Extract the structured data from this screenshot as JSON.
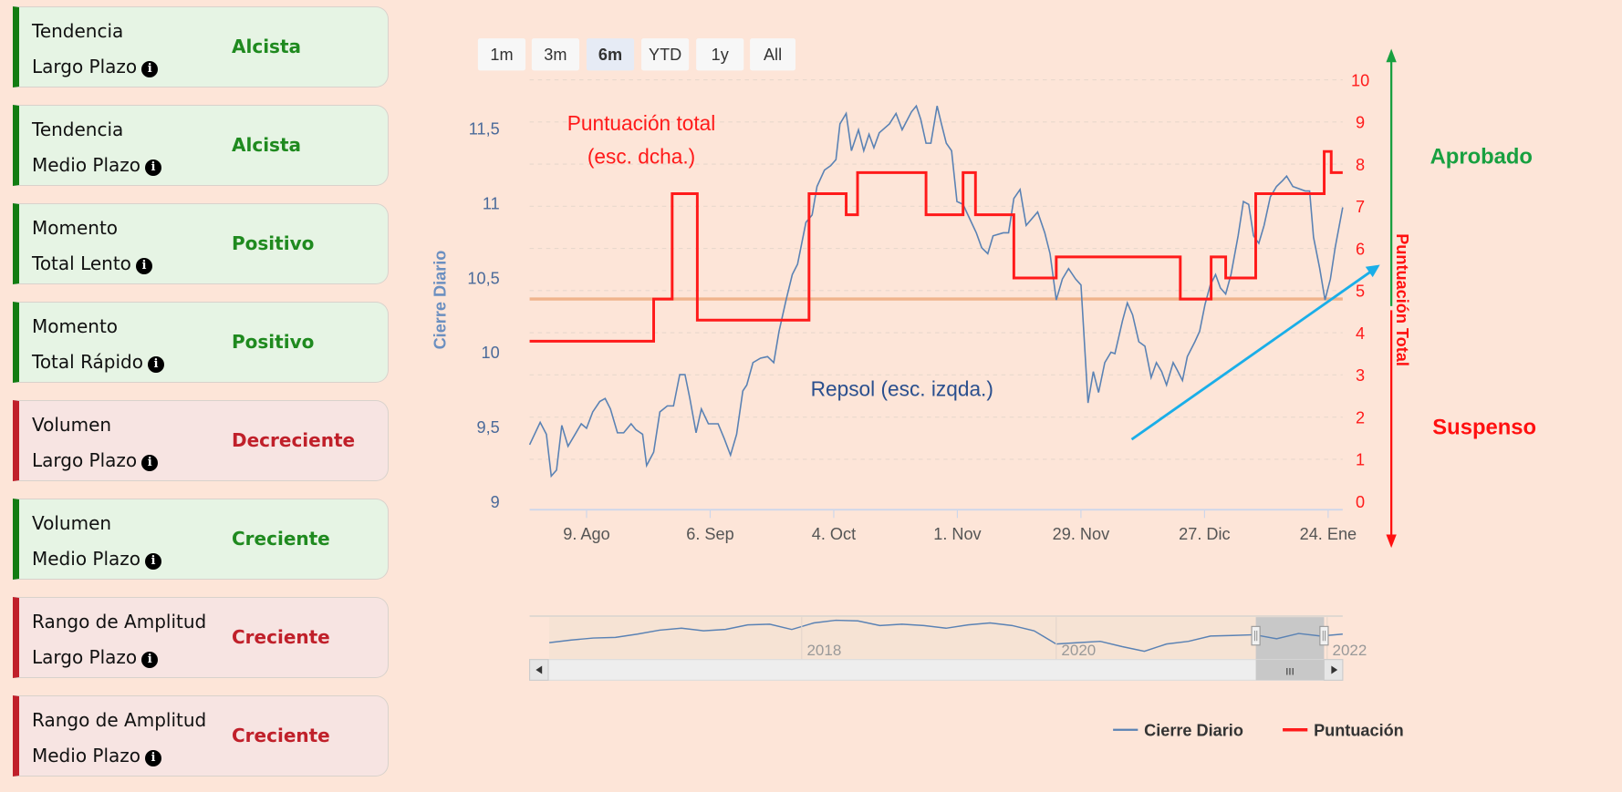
{
  "cards": [
    {
      "line1": "Tendencia",
      "line2": "Largo Plazo",
      "value": "Alcista",
      "status": "pos"
    },
    {
      "line1": "Tendencia",
      "line2": "Medio Plazo",
      "value": "Alcista",
      "status": "pos"
    },
    {
      "line1": "Momento",
      "line2": "Total Lento",
      "value": "Positivo",
      "status": "pos"
    },
    {
      "line1": "Momento",
      "line2": "Total Rápido",
      "value": "Positivo",
      "status": "pos"
    },
    {
      "line1": "Volumen",
      "line2": "Largo Plazo",
      "value": "Decreciente",
      "status": "neg"
    },
    {
      "line1": "Volumen",
      "line2": "Medio Plazo",
      "value": "Creciente",
      "status": "pos"
    },
    {
      "line1": "Rango de Amplitud",
      "line2": "Largo Plazo",
      "value": "Creciente",
      "status": "neg"
    },
    {
      "line1": "Rango de Amplitud",
      "line2": "Medio Plazo",
      "value": "Creciente",
      "status": "neg"
    }
  ],
  "info_icon": "i",
  "range_buttons": [
    {
      "label": "1m",
      "active": false
    },
    {
      "label": "3m",
      "active": false
    },
    {
      "label": "6m",
      "active": true
    },
    {
      "label": "YTD",
      "active": false
    },
    {
      "label": "1y",
      "active": false
    },
    {
      "label": "All",
      "active": false
    }
  ],
  "annotations": {
    "score_title_1": "Puntuación total",
    "score_title_2": "(esc. dcha.)",
    "price_title": "Repsol (esc. izqda.)",
    "approved": "Aprobado",
    "failed": "Suspenso",
    "right_axis_title": "Puntuación Total"
  },
  "colors": {
    "price": "#5a82b4",
    "score": "#ff1a1a",
    "threshold": "#f0b48c",
    "approved": "#18a040",
    "failed": "#ff1010",
    "trend_arrow": "#1aaee8"
  },
  "chart_data": {
    "type": "line",
    "title": "",
    "xlabel": "",
    "ylabel": "Cierre Diario",
    "ylabel_right": "Puntuación Total",
    "x_unit": "days since 9. Ago",
    "xlim": [
      -12.9,
      171.3
    ],
    "ylim": [
      9,
      11.82
    ],
    "ylim_right": [
      0,
      10
    ],
    "y_ticks": [
      "9",
      "9,5",
      "10",
      "10,5",
      "11",
      "11,5"
    ],
    "y_tick_values": [
      9,
      9.5,
      10,
      10.5,
      11,
      11.5
    ],
    "y_right_ticks": [
      "0",
      "1",
      "2",
      "3",
      "4",
      "5",
      "6",
      "7",
      "8",
      "9",
      "10"
    ],
    "x_ticks": [
      {
        "label": "9. Ago",
        "x": 0
      },
      {
        "label": "6. Sep",
        "x": 28
      },
      {
        "label": "4. Oct",
        "x": 56
      },
      {
        "label": "1. Nov",
        "x": 84
      },
      {
        "label": "29. Nov",
        "x": 112
      },
      {
        "label": "27. Dic",
        "x": 140
      },
      {
        "label": "24. Ene",
        "x": 168
      }
    ],
    "grid": true,
    "threshold_score": 4.8,
    "legend": {
      "position": "bottom-right",
      "items": [
        "Cierre Diario",
        "Puntuación"
      ]
    },
    "series": [
      {
        "name": "Cierre Diario",
        "axis": "left",
        "points": [
          [
            -12.9,
            9.38
          ],
          [
            -10.5,
            9.53
          ],
          [
            -9.1,
            9.45
          ],
          [
            -8.0,
            9.17
          ],
          [
            -6.8,
            9.21
          ],
          [
            -5.6,
            9.51
          ],
          [
            -4.2,
            9.37
          ],
          [
            -2.6,
            9.45
          ],
          [
            -1.2,
            9.52
          ],
          [
            0,
            9.49
          ],
          [
            1.4,
            9.6
          ],
          [
            3.0,
            9.67
          ],
          [
            4.2,
            9.69
          ],
          [
            5.4,
            9.62
          ],
          [
            7.0,
            9.46
          ],
          [
            8.4,
            9.46
          ],
          [
            10.1,
            9.52
          ],
          [
            11.2,
            9.48
          ],
          [
            12.7,
            9.45
          ],
          [
            13.6,
            9.24
          ],
          [
            15.2,
            9.33
          ],
          [
            16.6,
            9.6
          ],
          [
            18.3,
            9.64
          ],
          [
            19.7,
            9.64
          ],
          [
            21.1,
            9.85
          ],
          [
            22.3,
            9.85
          ],
          [
            23.4,
            9.69
          ],
          [
            24.8,
            9.46
          ],
          [
            26.0,
            9.62
          ],
          [
            27.6,
            9.52
          ],
          [
            29.8,
            9.52
          ],
          [
            31.2,
            9.42
          ],
          [
            32.6,
            9.31
          ],
          [
            34.0,
            9.45
          ],
          [
            35.4,
            9.74
          ],
          [
            36.3,
            9.78
          ],
          [
            37.7,
            9.93
          ],
          [
            39.4,
            9.96
          ],
          [
            41.0,
            9.97
          ],
          [
            42.4,
            9.93
          ],
          [
            43.6,
            10.14
          ],
          [
            45.2,
            10.35
          ],
          [
            46.6,
            10.52
          ],
          [
            47.8,
            10.59
          ],
          [
            49.7,
            10.87
          ],
          [
            51.1,
            10.92
          ],
          [
            52.2,
            11.11
          ],
          [
            53.9,
            11.22
          ],
          [
            55.3,
            11.25
          ],
          [
            56.5,
            11.29
          ],
          [
            57.4,
            11.53
          ],
          [
            58.8,
            11.6
          ],
          [
            60.0,
            11.35
          ],
          [
            61.6,
            11.49
          ],
          [
            62.8,
            11.35
          ],
          [
            64.0,
            11.46
          ],
          [
            65.1,
            11.37
          ],
          [
            66.3,
            11.47
          ],
          [
            68.6,
            11.53
          ],
          [
            70.1,
            11.6
          ],
          [
            71.5,
            11.49
          ],
          [
            73.6,
            11.61
          ],
          [
            74.7,
            11.65
          ],
          [
            75.7,
            11.56
          ],
          [
            76.9,
            11.4
          ],
          [
            78.0,
            11.4
          ],
          [
            79.4,
            11.65
          ],
          [
            80.4,
            11.53
          ],
          [
            81.5,
            11.4
          ],
          [
            82.7,
            11.35
          ],
          [
            83.9,
            11.01
          ],
          [
            85.3,
            10.99
          ],
          [
            86.7,
            10.9
          ],
          [
            88.3,
            10.8
          ],
          [
            89.5,
            10.7
          ],
          [
            90.9,
            10.66
          ],
          [
            92.1,
            10.78
          ],
          [
            94.4,
            10.8
          ],
          [
            95.6,
            10.8
          ],
          [
            96.8,
            11.03
          ],
          [
            98.2,
            11.09
          ],
          [
            99.6,
            10.85
          ],
          [
            102.2,
            10.94
          ],
          [
            103.8,
            10.8
          ],
          [
            105.0,
            10.66
          ],
          [
            106.4,
            10.35
          ],
          [
            107.8,
            10.49
          ],
          [
            109.2,
            10.56
          ],
          [
            110.8,
            10.49
          ],
          [
            112.0,
            10.45
          ],
          [
            113.6,
            9.66
          ],
          [
            114.8,
            9.87
          ],
          [
            116.0,
            9.73
          ],
          [
            117.4,
            9.93
          ],
          [
            118.8,
            10.0
          ],
          [
            119.7,
            9.99
          ],
          [
            121.4,
            10.21
          ],
          [
            122.5,
            10.33
          ],
          [
            123.7,
            10.25
          ],
          [
            125.1,
            10.07
          ],
          [
            126.5,
            10.04
          ],
          [
            127.9,
            9.83
          ],
          [
            129.1,
            9.93
          ],
          [
            130.3,
            9.87
          ],
          [
            131.4,
            9.78
          ],
          [
            132.9,
            9.93
          ],
          [
            133.8,
            9.88
          ],
          [
            135.0,
            9.81
          ],
          [
            136.1,
            9.97
          ],
          [
            137.8,
            10.07
          ],
          [
            138.9,
            10.14
          ],
          [
            140.1,
            10.32
          ],
          [
            141.3,
            10.45
          ],
          [
            142.5,
            10.52
          ],
          [
            143.6,
            10.43
          ],
          [
            144.8,
            10.39
          ],
          [
            146.0,
            10.52
          ],
          [
            147.6,
            10.78
          ],
          [
            148.8,
            11.01
          ],
          [
            150.0,
            10.99
          ],
          [
            151.1,
            10.78
          ],
          [
            152.3,
            10.73
          ],
          [
            153.5,
            10.85
          ],
          [
            154.9,
            11.04
          ],
          [
            156.3,
            11.11
          ],
          [
            157.7,
            11.15
          ],
          [
            158.6,
            11.18
          ],
          [
            160.0,
            11.11
          ],
          [
            162.8,
            11.08
          ],
          [
            163.8,
            11.08
          ],
          [
            164.7,
            10.77
          ],
          [
            166.1,
            10.56
          ],
          [
            167.3,
            10.35
          ],
          [
            168.5,
            10.49
          ],
          [
            169.6,
            10.7
          ],
          [
            171.3,
            10.97
          ]
        ]
      },
      {
        "name": "Puntuación",
        "axis": "right",
        "step": true,
        "steps": [
          [
            -12.9,
            15.2,
            3.8
          ],
          [
            15.2,
            19.4,
            4.8
          ],
          [
            19.4,
            25.1,
            7.3
          ],
          [
            25.1,
            50.4,
            4.3
          ],
          [
            50.4,
            58.8,
            7.3
          ],
          [
            58.8,
            61.4,
            6.8
          ],
          [
            61.4,
            76.9,
            7.8
          ],
          [
            76.9,
            85.3,
            6.8
          ],
          [
            85.3,
            88.1,
            7.8
          ],
          [
            88.1,
            96.8,
            6.8
          ],
          [
            96.8,
            106.4,
            5.3
          ],
          [
            106.4,
            134.5,
            5.8
          ],
          [
            134.5,
            141.5,
            4.8
          ],
          [
            141.5,
            144.8,
            5.8
          ],
          [
            144.8,
            151.6,
            5.3
          ],
          [
            151.6,
            167.1,
            7.3
          ],
          [
            167.1,
            168.7,
            8.3
          ],
          [
            168.7,
            171.3,
            7.8
          ]
        ]
      }
    ],
    "navigator": {
      "labels": [
        "2018",
        "2020",
        "2022"
      ],
      "values": [
        8.6,
        9.0,
        9.3,
        9.4,
        9.9,
        10.5,
        10.8,
        10.4,
        10.6,
        11.3,
        11.4,
        10.6,
        11.6,
        12.0,
        11.9,
        11.2,
        11.4,
        11.2,
        10.8,
        11.3,
        11.6,
        11.2,
        10.4,
        8.4,
        8.6,
        8.8,
        8.0,
        7.3,
        8.4,
        8.8,
        9.6,
        9.7,
        9.8,
        9.2,
        10.0,
        9.6,
        9.9
      ],
      "selected_range": [
        0.917,
        1.0
      ]
    }
  }
}
